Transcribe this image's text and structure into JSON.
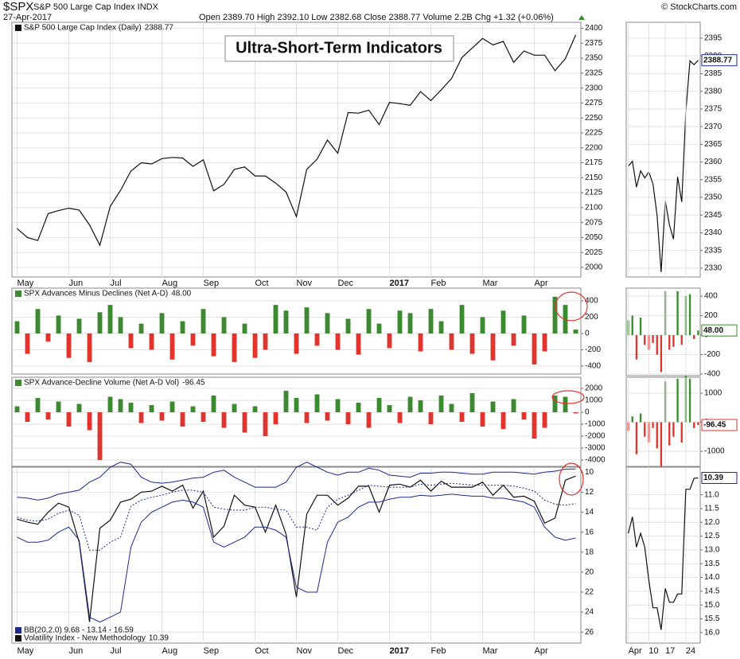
{
  "header": {
    "symbol": "$SPX",
    "name": "S&P 500 Large Cap Index INDX",
    "date": "27-Apr-2017",
    "quote": "Open 2389.70 High 2392.10 Low 2382.68 Close 2388.77 Volume 2.2B Chg +1.32 (+0.06%)",
    "credit": "© StockCharts.com"
  },
  "chart_data": [
    {
      "type": "line",
      "title": "S&P 500 Large Cap Index (Daily)",
      "last": 2388.77,
      "annotation": "Ultra-Short-Term Indicators",
      "series": [
        {
          "color": "#111111",
          "values": [
            2065,
            2050,
            2045,
            2090,
            2095,
            2099,
            2096,
            2071,
            2037,
            2102,
            2129,
            2161,
            2175,
            2173,
            2182,
            2184,
            2183,
            2169,
            2180,
            2128,
            2139,
            2164,
            2168,
            2153,
            2153,
            2141,
            2126,
            2085,
            2164,
            2181,
            2213,
            2191,
            2259,
            2258,
            2263,
            2239,
            2276,
            2274,
            2271,
            2294,
            2279,
            2297,
            2316,
            2351,
            2367,
            2383,
            2372,
            2378,
            2343,
            2362,
            2355,
            2355,
            2329,
            2349,
            2388.77
          ]
        }
      ],
      "xlim": [
        -0.5,
        54.5
      ],
      "xticks": [
        {
          "value": 0,
          "label": "May"
        },
        {
          "value": 5,
          "label": "Jun"
        },
        {
          "value": 9,
          "label": "Jul"
        },
        {
          "value": 14,
          "label": "Aug"
        },
        {
          "value": 18,
          "label": "Sep"
        },
        {
          "value": 23,
          "label": "Oct"
        },
        {
          "value": 27,
          "label": "Nov"
        },
        {
          "value": 31,
          "label": "Dec"
        },
        {
          "value": 36,
          "label": "2017"
        },
        {
          "value": 40,
          "label": "Feb"
        },
        {
          "value": 45,
          "label": "Mar"
        },
        {
          "value": 50,
          "label": "Apr"
        }
      ],
      "ylim": [
        1984,
        2410
      ],
      "yticks": [
        2000,
        2025,
        2050,
        2075,
        2100,
        2125,
        2150,
        2175,
        2200,
        2225,
        2250,
        2275,
        2300,
        2325,
        2350,
        2375,
        2400
      ],
      "grid": true
    },
    {
      "type": "bar",
      "title": "SPX Advances Minus Declines (Net A-D)",
      "last": {
        "value": 48,
        "label": "48.00"
      },
      "colors": {
        "up": "#3b8a2f",
        "down": "#e0342c"
      },
      "series": [
        {
          "values": [
            150,
            -250,
            300,
            -100,
            220,
            -300,
            180,
            -350,
            260,
            350,
            200,
            -180,
            120,
            -200,
            250,
            -320,
            150,
            -150,
            300,
            -280,
            200,
            -350,
            120,
            -300,
            -200,
            350,
            280,
            -250,
            320,
            -150,
            250,
            -200,
            180,
            -260,
            300,
            120,
            -180,
            280,
            250,
            -220,
            300,
            150,
            -200,
            350,
            -250,
            200,
            -330,
            280,
            -150,
            220,
            -380,
            -220,
            450,
            350,
            48
          ]
        }
      ],
      "xlim": [
        -0.5,
        54.5
      ],
      "ylim": [
        -498,
        556
      ],
      "yticks": [
        -400,
        -200,
        0,
        200,
        400
      ],
      "grid": true
    },
    {
      "type": "bar",
      "title": "SPX Advance-Decline Volume (Net A-D Vol)",
      "last": -96.45,
      "colors": {
        "up": "#3b8a2f",
        "down": "#e0342c"
      },
      "series": [
        {
          "values": [
            500,
            -800,
            1200,
            -600,
            900,
            -1200,
            700,
            -1500,
            -4000,
            1300,
            1100,
            800,
            -900,
            600,
            -700,
            900,
            -1200,
            500,
            -800,
            1400,
            -1300,
            700,
            -1700,
            500,
            -2000,
            -1000,
            1800,
            1200,
            -900,
            1500,
            -700,
            1100,
            -1000,
            800,
            -1300,
            1200,
            600,
            -900,
            1300,
            1000,
            -1000,
            1400,
            700,
            -800,
            1600,
            -1200,
            900,
            -1400,
            1100,
            -600,
            -2200,
            -1300,
            1400,
            1300,
            -96.45
          ]
        }
      ],
      "xlim": [
        -0.5,
        54.5
      ],
      "ylim": [
        -4533,
        2933
      ],
      "yticks": [
        -4000,
        -3000,
        -2000,
        -1000,
        0,
        1000,
        2000
      ],
      "grid": true
    },
    {
      "type": "line",
      "title": "Volatility Index - New Methodology",
      "last": 10.39,
      "bb_label": "BB(20,2.0) 9.68 - 13.14 - 16.59",
      "inverted": true,
      "series": [
        {
          "color": "#111111",
          "values": [
            14.7,
            15.0,
            15.2,
            14.0,
            13.1,
            13.5,
            17.0,
            25.0,
            15.6,
            14.8,
            13.0,
            12.7,
            12.0,
            11.9,
            11.4,
            11.9,
            11.3,
            13.6,
            11.9,
            16.5,
            15.4,
            12.3,
            13.3,
            13.5,
            16.0,
            13.3,
            16.2,
            22.5,
            14.2,
            12.3,
            12.3,
            13.3,
            12.6,
            11.4,
            11.4,
            14.0,
            11.3,
            11.2,
            11.5,
            10.8,
            11.9,
            10.9,
            11.5,
            11.5,
            11.5,
            11.0,
            12.3,
            11.3,
            12.5,
            12.4,
            12.9,
            15.1,
            14.6,
            10.8,
            10.39
          ]
        },
        {
          "color": "#1c2a8c",
          "values": [
            12.5,
            12.6,
            12.8,
            12.6,
            12.2,
            12.0,
            11.8,
            11.0,
            10.5,
            9.5,
            9.0,
            9.2,
            10.5,
            11.0,
            11.1,
            11.0,
            10.8,
            10.6,
            10.5,
            10.0,
            9.8,
            10.5,
            11.0,
            11.5,
            11.5,
            11.5,
            11.0,
            9.5,
            9.0,
            9.5,
            10.0,
            10.3,
            10.0,
            10.0,
            9.6,
            9.8,
            10.3,
            10.4,
            10.5,
            10.1,
            10.1,
            10.0,
            10.0,
            10.1,
            10.2,
            10.2,
            10.0,
            10.0,
            10.0,
            10.1,
            10.2,
            10.0,
            9.9,
            9.7,
            9.68
          ]
        },
        {
          "color": "#1c2a8c",
          "style": "dotted",
          "values": [
            14.5,
            14.8,
            14.9,
            14.7,
            14.1,
            13.8,
            14.3,
            17.8,
            17.8,
            17.0,
            16.5,
            13.4,
            12.8,
            12.5,
            12.3,
            12.0,
            11.8,
            11.8,
            12.0,
            13.5,
            13.7,
            13.8,
            13.8,
            13.5,
            13.5,
            13.7,
            13.8,
            15.5,
            15.5,
            15.8,
            13.5,
            12.7,
            12.3,
            11.8,
            11.3,
            11.4,
            11.5,
            11.5,
            11.5,
            11.2,
            11.3,
            11.2,
            11.1,
            11.2,
            11.3,
            11.3,
            11.3,
            11.3,
            11.4,
            11.6,
            11.9,
            12.8,
            13.2,
            13.3,
            13.14
          ]
        },
        {
          "color": "#1c2a8c",
          "values": [
            16.5,
            17.0,
            17.0,
            16.8,
            16.0,
            15.5,
            16.8,
            24.5,
            25.0,
            24.5,
            24.0,
            17.5,
            15.0,
            14.0,
            13.5,
            13.0,
            12.8,
            13.0,
            13.5,
            17.0,
            17.5,
            17.0,
            16.5,
            15.5,
            15.5,
            15.8,
            16.5,
            21.5,
            22.0,
            22.0,
            17.0,
            15.0,
            14.5,
            13.5,
            13.0,
            13.0,
            12.7,
            12.5,
            12.5,
            12.3,
            12.4,
            12.3,
            12.2,
            12.3,
            12.4,
            12.4,
            12.6,
            12.6,
            12.8,
            13.0,
            13.5,
            15.5,
            16.5,
            16.8,
            16.59
          ]
        }
      ],
      "xlim": [
        -0.5,
        54.5
      ],
      "xticks": [
        {
          "value": 0,
          "label": "May"
        },
        {
          "value": 5,
          "label": "Jun"
        },
        {
          "value": 9,
          "label": "Jul"
        },
        {
          "value": 14,
          "label": "Aug"
        },
        {
          "value": 18,
          "label": "Sep"
        },
        {
          "value": 23,
          "label": "Oct"
        },
        {
          "value": 27,
          "label": "Nov"
        },
        {
          "value": 31,
          "label": "Dec"
        },
        {
          "value": 36,
          "label": "2017"
        },
        {
          "value": 40,
          "label": "Feb"
        },
        {
          "value": 45,
          "label": "Mar"
        },
        {
          "value": 50,
          "label": "Apr"
        }
      ],
      "ylim": [
        9.5,
        27.1
      ],
      "yticks": [
        10,
        12,
        14,
        16,
        18,
        20,
        22,
        24,
        26
      ],
      "grid": true
    },
    {
      "type": "line",
      "last": 2388.77,
      "series": [
        {
          "color": "#111111",
          "values": [
            2358.8,
            2360.2,
            2352.9,
            2357.5,
            2355.5,
            2357.2,
            2353.8,
            2344.9,
            2328.9,
            2349.0,
            2342.2,
            2338.2,
            2355.8,
            2348.7,
            2374.2,
            2388.6,
            2387.5,
            2388.77
          ]
        }
      ],
      "xlim": [
        -0.5,
        17.5
      ],
      "ylim": [
        2327.5,
        2399.5
      ],
      "yticks": [
        2330,
        2335,
        2340,
        2345,
        2350,
        2355,
        2360,
        2365,
        2370,
        2375,
        2380,
        2385,
        2390,
        2395
      ],
      "grid": true
    },
    {
      "type": "bar",
      "last": {
        "value": 48,
        "label": "48.00"
      },
      "colors": {
        "up": "#3b8a2f",
        "down": "#e0342c"
      },
      "series": [
        {
          "values": [
            150,
            200,
            -250,
            180,
            -100,
            -150,
            -80,
            -200,
            -380,
            450,
            -150,
            -120,
            450,
            -100,
            400,
            420,
            -40,
            48
          ]
        }
      ],
      "xlim": [
        -0.5,
        17.5
      ],
      "ylim": [
        -416,
        482
      ],
      "yticks": [
        -400,
        -200,
        0,
        200,
        400
      ],
      "grid": true
    },
    {
      "type": "bar",
      "last": -96.45,
      "colors": {
        "up": "#3b8a2f",
        "down": "#e0342c"
      },
      "series": [
        {
          "values": [
            -300,
            200,
            -1100,
            300,
            -500,
            -700,
            -200,
            -900,
            -1600,
            1400,
            -800,
            -500,
            1500,
            -700,
            1600,
            1500,
            -200,
            -96.45
          ]
        }
      ],
      "xlim": [
        -0.5,
        17.5
      ],
      "ylim": [
        -1520,
        1548
      ],
      "yticks": [
        -1000,
        0,
        1000
      ],
      "grid": true
    },
    {
      "type": "line",
      "last": 10.39,
      "inverted": true,
      "series": [
        {
          "color": "#111111",
          "values": [
            12.4,
            11.8,
            12.9,
            12.4,
            12.9,
            14.1,
            15.1,
            15.1,
            15.9,
            14.4,
            14.9,
            14.9,
            14.6,
            14.6,
            10.8,
            10.8,
            10.4,
            10.39
          ]
        }
      ],
      "xlim": [
        -0.5,
        17.5
      ],
      "xticks": [
        {
          "value": 0,
          "label": "Apr"
        },
        {
          "value": 5,
          "label": "10"
        },
        {
          "value": 9,
          "label": "17"
        },
        {
          "value": 14,
          "label": "24"
        }
      ],
      "ylim": [
        10,
        16.38
      ],
      "yticks": [
        {
          "value": 11,
          "label": "11.0"
        },
        {
          "value": 11.5,
          "label": "11.5"
        },
        {
          "value": 12,
          "label": "12.0"
        },
        {
          "value": 12.5,
          "label": "12.5"
        },
        {
          "value": 13,
          "label": "13.0"
        },
        {
          "value": 13.5,
          "label": "13.5"
        },
        {
          "value": 14,
          "label": "14.0"
        },
        {
          "value": 14.5,
          "label": "14.5"
        },
        {
          "value": 15,
          "label": "15.0"
        },
        {
          "value": 15.5,
          "label": "15.5"
        },
        {
          "value": 16,
          "label": "16.0"
        }
      ],
      "grid": true
    }
  ]
}
